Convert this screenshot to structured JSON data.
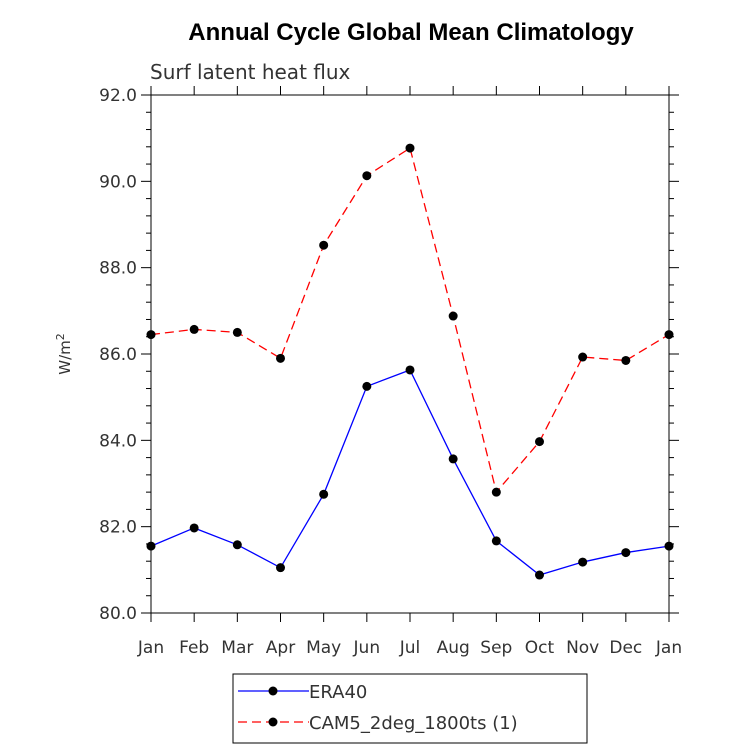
{
  "chart_data": {
    "type": "line",
    "title": "Annual Cycle Global Mean Climatology",
    "subtitle": "Surf latent heat flux",
    "ylabel": "W/m",
    "ylabel_sup": "2",
    "xlabel": "",
    "categories": [
      "Jan",
      "Feb",
      "Mar",
      "Apr",
      "May",
      "Jun",
      "Jul",
      "Aug",
      "Sep",
      "Oct",
      "Nov",
      "Dec",
      "Jan"
    ],
    "ylim": [
      80.0,
      92.0
    ],
    "yticks": [
      "80.0",
      "82.0",
      "84.0",
      "86.0",
      "88.0",
      "90.0",
      "92.0"
    ],
    "series": [
      {
        "name": "ERA40",
        "color": "#0000ff",
        "dash": "solid",
        "values": [
          81.55,
          81.97,
          81.58,
          81.05,
          82.75,
          85.25,
          85.63,
          83.57,
          81.67,
          80.88,
          81.18,
          81.4,
          81.55
        ]
      },
      {
        "name": "CAM5_2deg_1800ts (1)",
        "color": "#ff0000",
        "dash": "dashed",
        "values": [
          86.45,
          86.57,
          86.5,
          85.9,
          88.52,
          90.13,
          90.77,
          86.88,
          82.8,
          83.97,
          85.93,
          85.85,
          86.45
        ]
      }
    ],
    "legend_position": "bottom-center",
    "grid": false
  }
}
